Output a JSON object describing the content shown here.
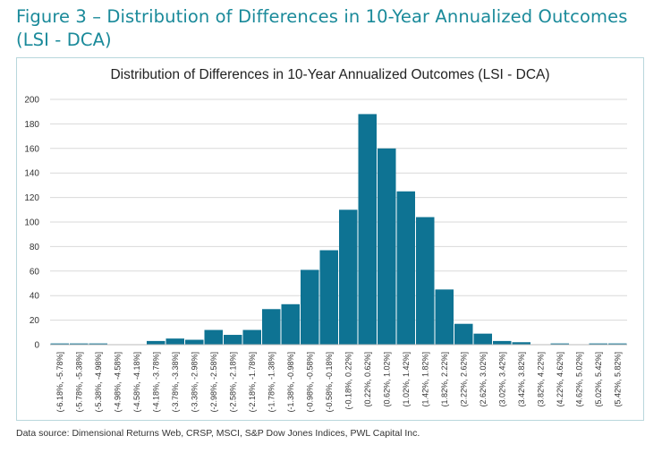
{
  "figure": {
    "title_line1": "Figure 3 – Distribution of Differences in 10-Year Annualized Outcomes",
    "title_line2": "(LSI - DCA)"
  },
  "source_note": "Data source: Dimensional Returns Web, CRSP, MSCI, S&P Dow Jones Indices, PWL Capital Inc.",
  "colors": {
    "bar": "#0e7393",
    "grid": "#d9d9d9",
    "title": "#1a8a9a"
  },
  "chart_data": {
    "type": "bar",
    "title": "Distribution of Differences in 10-Year Annualized Outcomes (LSI - DCA)",
    "xlabel": "",
    "ylabel": "",
    "ylim": [
      0,
      200
    ],
    "yticks": [
      0,
      20,
      40,
      60,
      80,
      100,
      120,
      140,
      160,
      180,
      200
    ],
    "grid": true,
    "categories": [
      "(-6.18%, -5.78%]",
      "(-5.78%, -5.38%]",
      "(-5.38%, -4.98%]",
      "(-4.98%, -4.58%]",
      "(-4.58%, -4.18%]",
      "(-4.18%, -3.78%]",
      "(-3.78%, -3.38%]",
      "(-3.38%, -2.98%]",
      "(-2.98%, -2.58%]",
      "(-2.58%, -2.18%]",
      "(-2.18%, -1.78%]",
      "(-1.78%, -1.38%]",
      "(-1.38%, -0.98%]",
      "(-0.98%, -0.58%]",
      "(-0.58%, -0.18%]",
      "(-0.18%, 0.22%]",
      "(0.22%, 0.62%]",
      "(0.62%, 1.02%]",
      "(1.02%, 1.42%]",
      "(1.42%, 1.82%]",
      "(1.82%, 2.22%]",
      "(2.22%, 2.62%]",
      "(2.62%, 3.02%]",
      "(3.02%, 3.42%]",
      "(3.42%, 3.82%]",
      "(3.82%, 4.22%]",
      "(4.22%, 4.62%]",
      "(4.62%, 5.02%]",
      "(5.02%, 5.42%]",
      "(5.42%, 5.82%]"
    ],
    "values": [
      1,
      1,
      1,
      0,
      0,
      3,
      5,
      4,
      12,
      8,
      12,
      29,
      33,
      61,
      77,
      110,
      188,
      160,
      125,
      104,
      45,
      17,
      9,
      3,
      2,
      0,
      1,
      0,
      1,
      1
    ]
  }
}
